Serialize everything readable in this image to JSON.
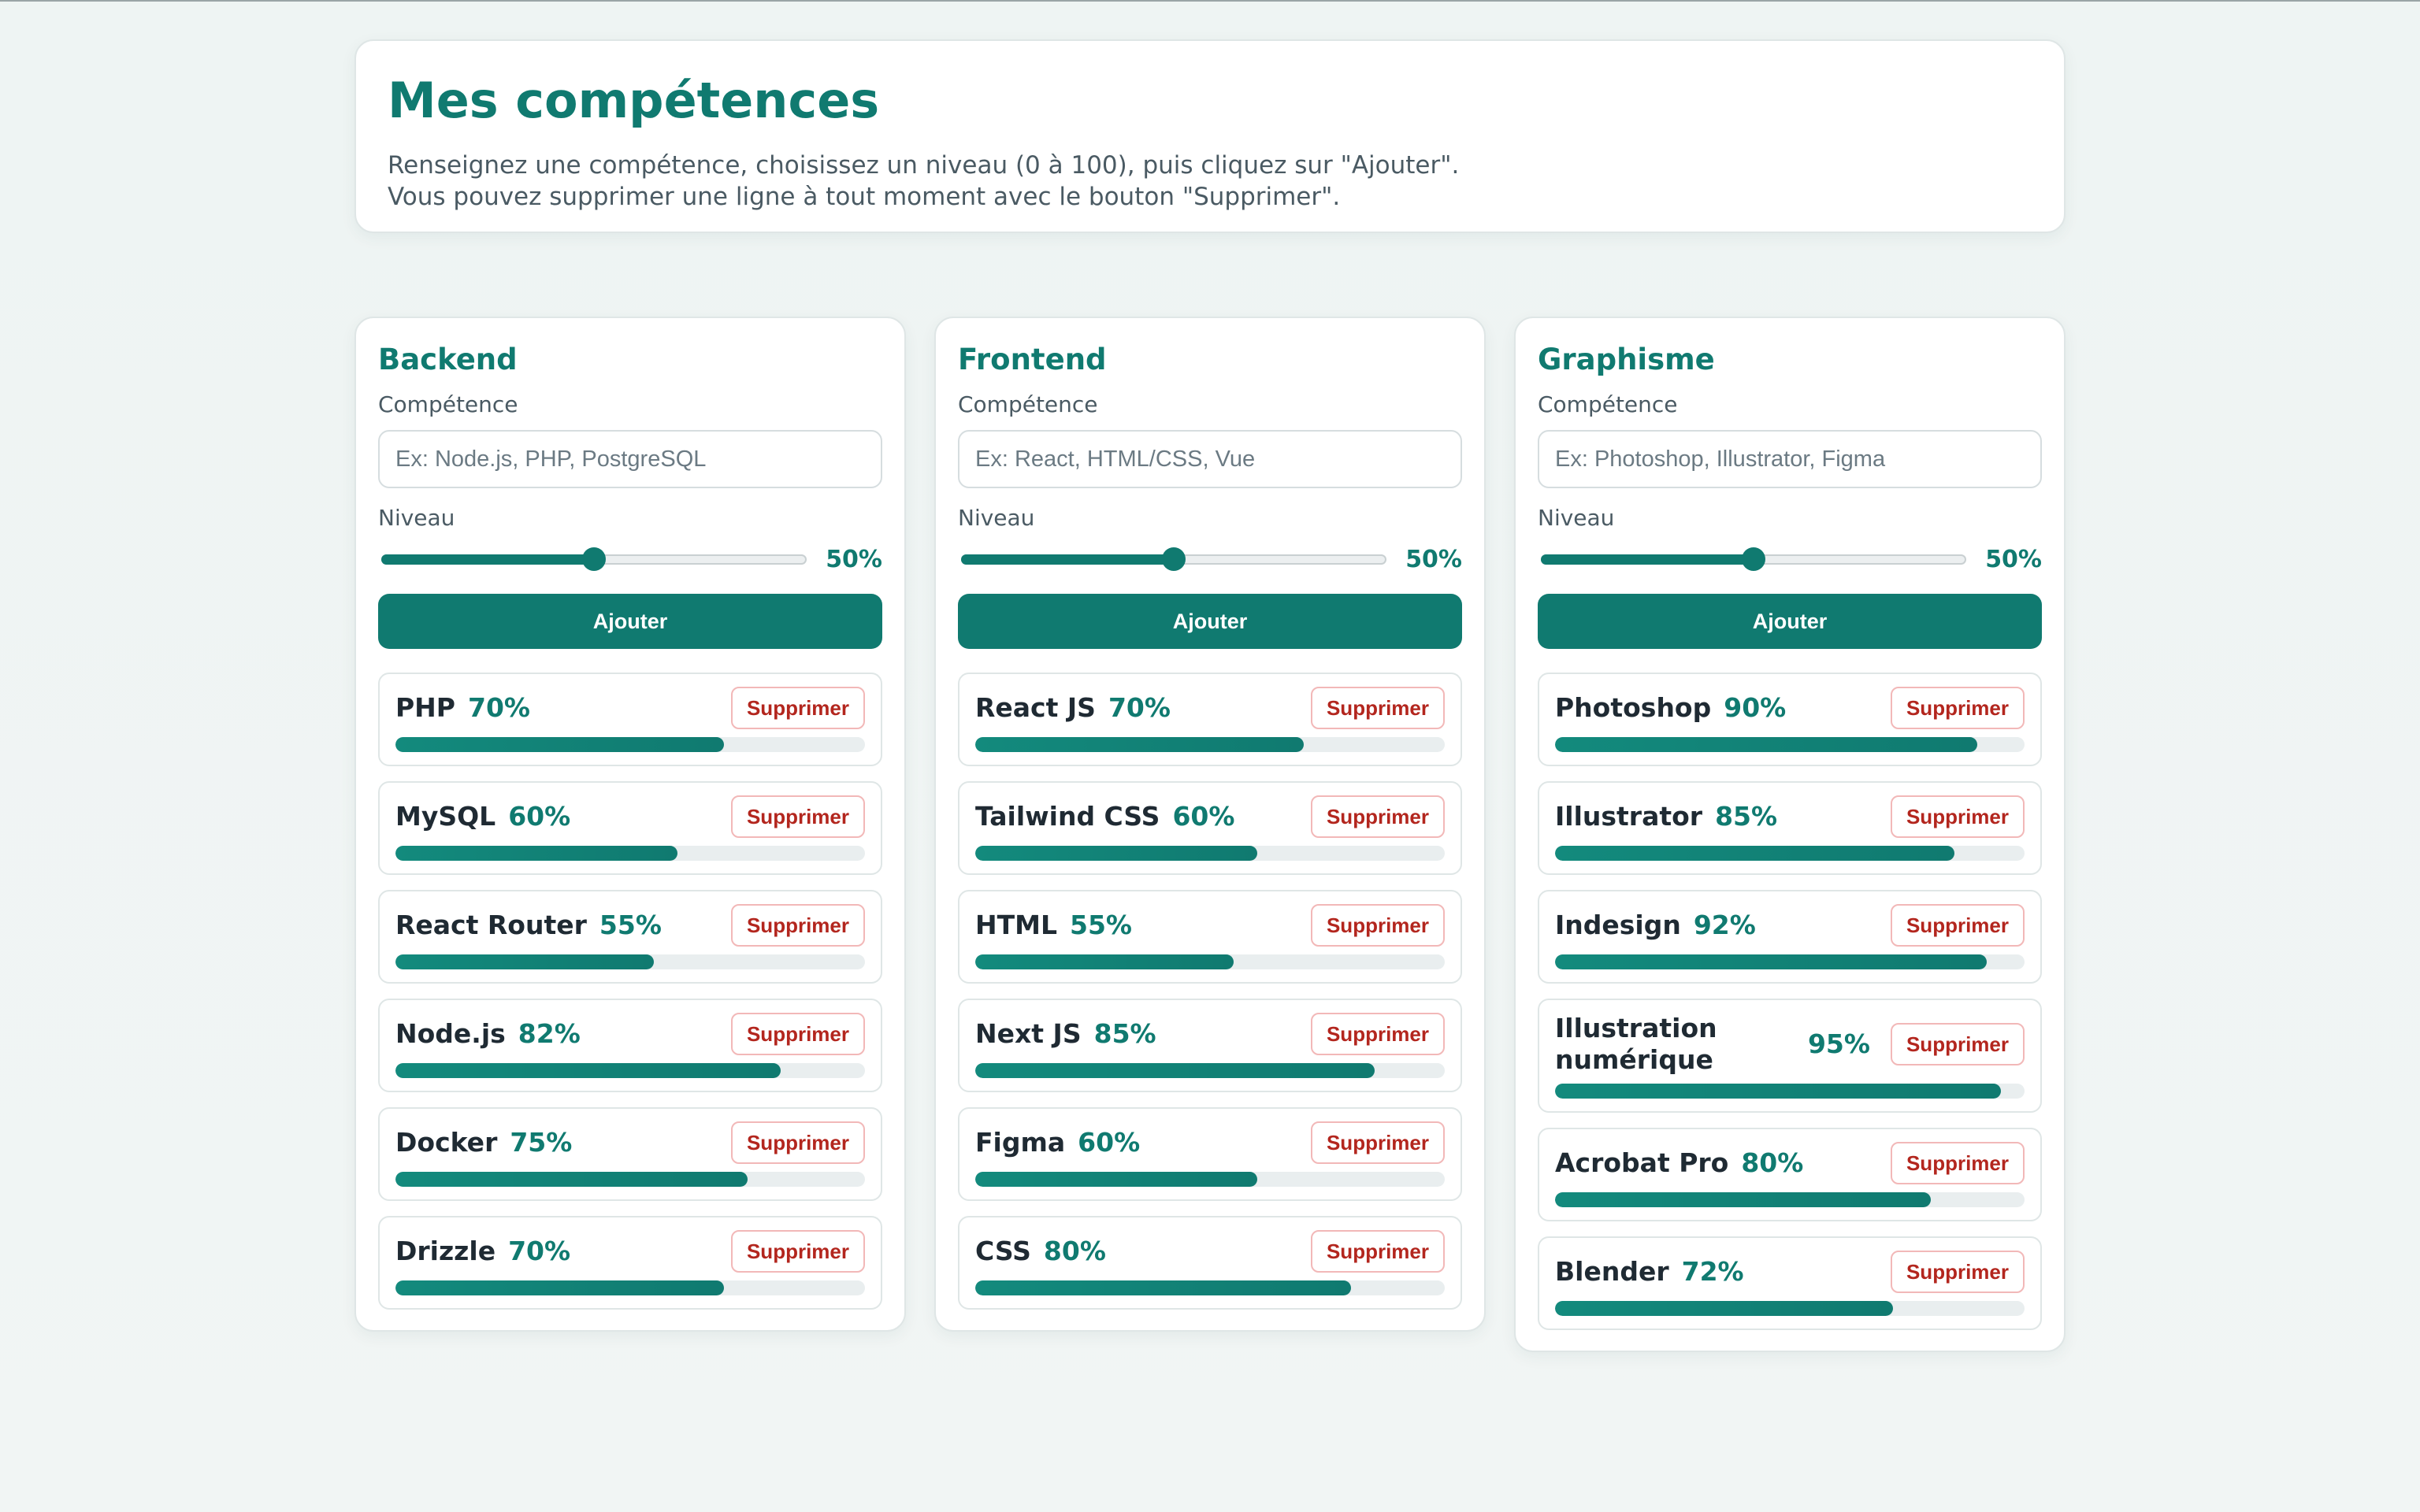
{
  "header": {
    "title": "Mes compétences",
    "line1": "Renseignez une compétence, choisissez un niveau (0 à 100), puis cliquez sur \"Ajouter\".",
    "line2": "Vous pouvez supprimer une ligne à tout moment avec le bouton \"Supprimer\"."
  },
  "colors": {
    "accent": "#107a70",
    "danger": "#b3261e"
  },
  "panels": [
    {
      "key": "backend",
      "title": "Backend",
      "skill_label": "Compétence",
      "placeholder": "Ex: Node.js, PHP, PostgreSQL",
      "level_label": "Niveau",
      "level": 50,
      "level_text": "50%",
      "add_label": "Ajouter",
      "items": [
        {
          "name": "PHP",
          "pct": 70,
          "pct_text": "70%",
          "delete_label": "Supprimer"
        },
        {
          "name": "MySQL",
          "pct": 60,
          "pct_text": "60%",
          "delete_label": "Supprimer"
        },
        {
          "name": "React Router",
          "pct": 55,
          "pct_text": "55%",
          "delete_label": "Supprimer"
        },
        {
          "name": "Node.js",
          "pct": 82,
          "pct_text": "82%",
          "delete_label": "Supprimer"
        },
        {
          "name": "Docker",
          "pct": 75,
          "pct_text": "75%",
          "delete_label": "Supprimer"
        },
        {
          "name": "Drizzle",
          "pct": 70,
          "pct_text": "70%",
          "delete_label": "Supprimer"
        }
      ]
    },
    {
      "key": "frontend",
      "title": "Frontend",
      "skill_label": "Compétence",
      "placeholder": "Ex: React, HTML/CSS, Vue",
      "level_label": "Niveau",
      "level": 50,
      "level_text": "50%",
      "add_label": "Ajouter",
      "items": [
        {
          "name": "React JS",
          "pct": 70,
          "pct_text": "70%",
          "delete_label": "Supprimer"
        },
        {
          "name": "Tailwind CSS",
          "pct": 60,
          "pct_text": "60%",
          "delete_label": "Supprimer"
        },
        {
          "name": "HTML",
          "pct": 55,
          "pct_text": "55%",
          "delete_label": "Supprimer"
        },
        {
          "name": "Next JS",
          "pct": 85,
          "pct_text": "85%",
          "delete_label": "Supprimer"
        },
        {
          "name": "Figma",
          "pct": 60,
          "pct_text": "60%",
          "delete_label": "Supprimer"
        },
        {
          "name": "CSS",
          "pct": 80,
          "pct_text": "80%",
          "delete_label": "Supprimer"
        }
      ]
    },
    {
      "key": "graphisme",
      "title": "Graphisme",
      "skill_label": "Compétence",
      "placeholder": "Ex: Photoshop, Illustrator, Figma",
      "level_label": "Niveau",
      "level": 50,
      "level_text": "50%",
      "add_label": "Ajouter",
      "items": [
        {
          "name": "Photoshop",
          "pct": 90,
          "pct_text": "90%",
          "delete_label": "Supprimer"
        },
        {
          "name": "Illustrator",
          "pct": 85,
          "pct_text": "85%",
          "delete_label": "Supprimer"
        },
        {
          "name": "Indesign",
          "pct": 92,
          "pct_text": "92%",
          "delete_label": "Supprimer"
        },
        {
          "name": "Illustration numérique",
          "pct": 95,
          "pct_text": "95%",
          "delete_label": "Supprimer",
          "wrap": true
        },
        {
          "name": "Acrobat Pro",
          "pct": 80,
          "pct_text": "80%",
          "delete_label": "Supprimer"
        },
        {
          "name": "Blender",
          "pct": 72,
          "pct_text": "72%",
          "delete_label": "Supprimer"
        }
      ]
    }
  ]
}
